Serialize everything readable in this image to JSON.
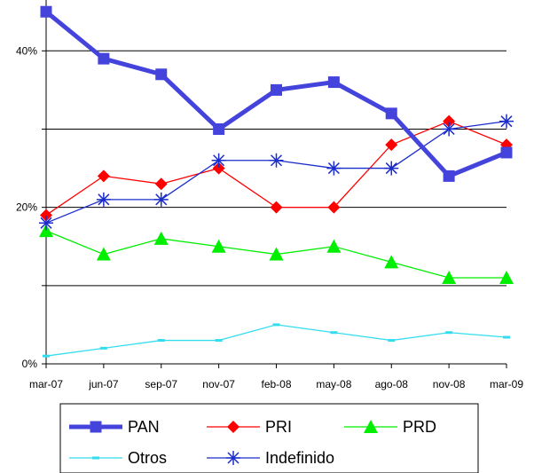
{
  "chart_data": {
    "type": "line",
    "title": "",
    "xlabel": "",
    "ylabel": "",
    "categories": [
      "mar-07",
      "jun-07",
      "sep-07",
      "nov-07",
      "feb-08",
      "may-08",
      "ago-08",
      "nov-08",
      "mar-09"
    ],
    "ylim": [
      0,
      45
    ],
    "y_ticks": [
      {
        "value": 0,
        "label": "0%"
      },
      {
        "value": 20,
        "label": "20%"
      },
      {
        "value": 40,
        "label": "40%"
      }
    ],
    "gridlines": [
      10,
      20,
      30,
      40
    ],
    "legend_position": "bottom",
    "series": [
      {
        "name": "PAN",
        "values": [
          45,
          39,
          37,
          30,
          35,
          36,
          32,
          24,
          27
        ],
        "color": "#4444dd",
        "marker": "square",
        "weight": "thick"
      },
      {
        "name": "PRI",
        "values": [
          19,
          24,
          23,
          25,
          20,
          20,
          28,
          31,
          28
        ],
        "color": "#ff0000",
        "marker": "diamond",
        "weight": "thin"
      },
      {
        "name": "PRD",
        "values": [
          17,
          14,
          16,
          15,
          14,
          15,
          13,
          11,
          11
        ],
        "color": "#00ee00",
        "marker": "triangle",
        "weight": "thin"
      },
      {
        "name": "Otros",
        "values": [
          1,
          2,
          3,
          3,
          5,
          4,
          3,
          4,
          3.4
        ],
        "color": "#33ddee",
        "marker": "dash",
        "weight": "thin"
      },
      {
        "name": "Indefinido",
        "values": [
          18,
          21,
          21,
          26,
          26,
          25,
          25,
          30,
          31
        ],
        "color": "#1a2ccc",
        "marker": "asterisk",
        "weight": "thin"
      }
    ]
  }
}
